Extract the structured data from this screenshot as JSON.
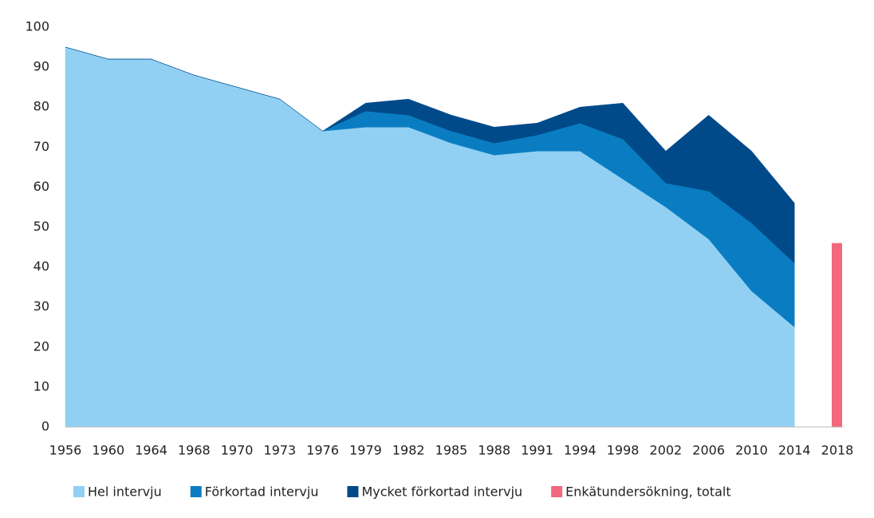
{
  "chart_data": {
    "type": "area",
    "categories": [
      "1956",
      "1960",
      "1964",
      "1968",
      "1970",
      "1973",
      "1976",
      "1979",
      "1982",
      "1985",
      "1988",
      "1991",
      "1994",
      "1998",
      "2002",
      "2006",
      "2010",
      "2014",
      "2018"
    ],
    "series": [
      {
        "name": "Hel intervju",
        "color": "#92d0f3",
        "type": "area",
        "values": [
          95,
          92,
          92,
          88,
          85,
          82,
          74,
          75,
          75,
          71,
          68,
          69,
          69,
          62,
          55,
          47,
          34,
          25,
          null
        ]
      },
      {
        "name": "Förkortad intervju",
        "color": "#0a7dc2",
        "type": "area",
        "values": [
          0,
          0,
          0,
          0,
          0,
          0,
          0,
          4,
          3,
          3,
          3,
          4,
          7,
          10,
          6,
          12,
          17,
          16,
          null
        ]
      },
      {
        "name": "Mycket förkortad intervju",
        "color": "#004a8a",
        "type": "area",
        "values": [
          0,
          0,
          0,
          0,
          0,
          0,
          0,
          2,
          4,
          4,
          4,
          3,
          4,
          9,
          8,
          19,
          18,
          15,
          null
        ]
      },
      {
        "name": "Enkätundersökning, totalt",
        "color": "#f2687e",
        "type": "bar",
        "values": [
          null,
          null,
          null,
          null,
          null,
          null,
          null,
          null,
          null,
          null,
          null,
          null,
          null,
          null,
          null,
          null,
          null,
          null,
          46
        ]
      }
    ],
    "ylim": [
      0,
      100
    ],
    "yticks": [
      0,
      10,
      20,
      30,
      40,
      50,
      60,
      70,
      80,
      90,
      100
    ],
    "grid": false,
    "legend": "bottom"
  }
}
